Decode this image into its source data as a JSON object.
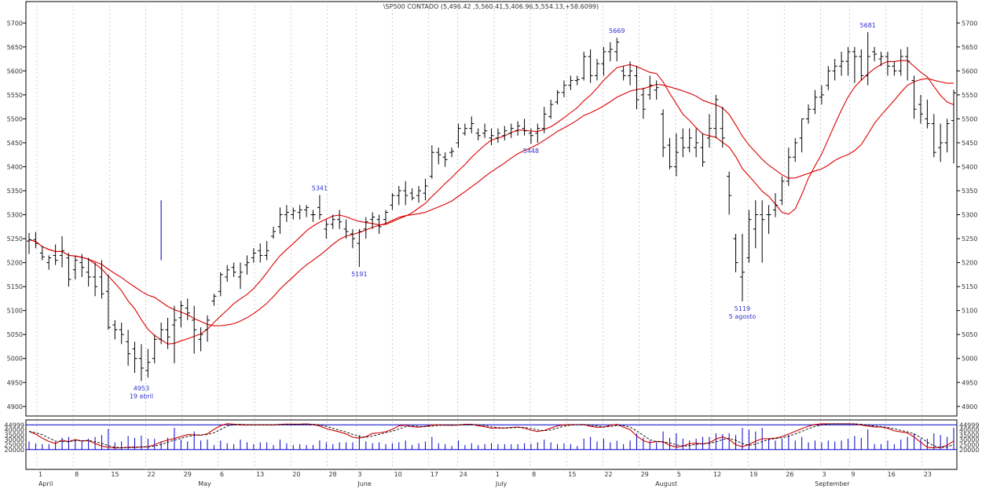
{
  "chart_data": {
    "type": "ohlc",
    "title": "\\SP500 CONTADO (5,496.42 ,5,560.41,5,406.96,5,554.13,+58.6099)",
    "price_axis": {
      "ylim": [
        4880,
        5725
      ],
      "ticks": [
        4900,
        4950,
        5000,
        5050,
        5100,
        5150,
        5200,
        5250,
        5300,
        5350,
        5400,
        5450,
        5500,
        5550,
        5600,
        5650,
        5700
      ],
      "tick_labels": [
        "4900",
        "4950",
        "5000",
        "5050",
        "5100",
        "5150",
        "5200",
        "5250",
        "5300",
        "5350",
        "5400",
        "5450",
        "5500",
        "5550",
        "5600",
        "5650",
        "5700"
      ]
    },
    "x_axis": {
      "day_ticks": [
        {
          "x": 0,
          "label": "1"
        },
        {
          "x": 5,
          "label": "8"
        },
        {
          "x": 10,
          "label": "15"
        },
        {
          "x": 15,
          "label": "22"
        },
        {
          "x": 20,
          "label": "29"
        },
        {
          "x": 25,
          "label": "6"
        },
        {
          "x": 30,
          "label": "13"
        },
        {
          "x": 35,
          "label": "20"
        },
        {
          "x": 40,
          "label": "28"
        },
        {
          "x": 44,
          "label": "3"
        },
        {
          "x": 49,
          "label": "10"
        },
        {
          "x": 54,
          "label": "17"
        },
        {
          "x": 58,
          "label": "24"
        },
        {
          "x": 63,
          "label": "1"
        },
        {
          "x": 68,
          "label": "8"
        },
        {
          "x": 73,
          "label": "15"
        },
        {
          "x": 78,
          "label": "22"
        },
        {
          "x": 83,
          "label": "29"
        },
        {
          "x": 88,
          "label": "5"
        },
        {
          "x": 93,
          "label": "12"
        },
        {
          "x": 98,
          "label": "19"
        },
        {
          "x": 103,
          "label": "26"
        },
        {
          "x": 108,
          "label": "3"
        },
        {
          "x": 112,
          "label": "9"
        },
        {
          "x": 117,
          "label": "16"
        },
        {
          "x": 122,
          "label": "23"
        }
      ],
      "months": [
        {
          "x": 0,
          "label": "April"
        },
        {
          "x": 22,
          "label": "May"
        },
        {
          "x": 44,
          "label": "June"
        },
        {
          "x": 63,
          "label": "July"
        },
        {
          "x": 85,
          "label": "August"
        },
        {
          "x": 107,
          "label": "September"
        }
      ],
      "xlim": [
        -1.5,
        125.5
      ]
    },
    "bars": [
      [
        0,
        5245,
        5262,
        5218,
        5248
      ],
      [
        1,
        5248,
        5264,
        5230,
        5240
      ],
      [
        2,
        5220,
        5235,
        5205,
        5212
      ],
      [
        3,
        5200,
        5215,
        5185,
        5210
      ],
      [
        4,
        5215,
        5238,
        5195,
        5205
      ],
      [
        5,
        5215,
        5255,
        5190,
        5225
      ],
      [
        6,
        5210,
        5220,
        5150,
        5165
      ],
      [
        7,
        5185,
        5215,
        5165,
        5205
      ],
      [
        8,
        5200,
        5218,
        5170,
        5190
      ],
      [
        9,
        5180,
        5210,
        5150,
        5170
      ],
      [
        10,
        5170,
        5200,
        5130,
        5150
      ],
      [
        11,
        5170,
        5205,
        5125,
        5135
      ],
      [
        12,
        5140,
        5175,
        5060,
        5065
      ],
      [
        13,
        5070,
        5080,
        5040,
        5060
      ],
      [
        14,
        5060,
        5075,
        5030,
        5050
      ],
      [
        15,
        5035,
        5060,
        4985,
        5010
      ],
      [
        16,
        5020,
        5035,
        4970,
        5000
      ],
      [
        17,
        5000,
        5030,
        4953,
        4980
      ],
      [
        18,
        4975,
        5020,
        4960,
        4992
      ],
      [
        19,
        5000,
        5050,
        4990,
        5040
      ],
      [
        20,
        5040,
        5075,
        5030,
        5060
      ],
      [
        21,
        5060,
        5085,
        5020,
        5045
      ],
      [
        22,
        5070,
        5110,
        4990,
        5080
      ],
      [
        23,
        5085,
        5120,
        5065,
        5110
      ],
      [
        24,
        5105,
        5125,
        5080,
        5095
      ],
      [
        25,
        5080,
        5110,
        5010,
        5060
      ],
      [
        26,
        5040,
        5065,
        5015,
        5050
      ],
      [
        27,
        5060,
        5090,
        5035,
        5080
      ],
      [
        28,
        5120,
        5135,
        5110,
        5130
      ],
      [
        29,
        5140,
        5180,
        5130,
        5175
      ],
      [
        30,
        5170,
        5195,
        5160,
        5185
      ],
      [
        31,
        5190,
        5200,
        5170,
        5180
      ],
      [
        32,
        5170,
        5200,
        5145,
        5180
      ],
      [
        33,
        5195,
        5215,
        5175,
        5200
      ],
      [
        34,
        5210,
        5230,
        5200,
        5220
      ],
      [
        35,
        5225,
        5240,
        5200,
        5215
      ],
      [
        36,
        5215,
        5245,
        5205,
        5225
      ],
      [
        37,
        5255,
        5275,
        5250,
        5265
      ],
      [
        38,
        5275,
        5315,
        5260,
        5300
      ],
      [
        39,
        5300,
        5320,
        5285,
        5305
      ],
      [
        40,
        5300,
        5315,
        5290,
        5308
      ],
      [
        41,
        5305,
        5320,
        5290,
        5310
      ],
      [
        42,
        5310,
        5320,
        5295,
        5315
      ],
      [
        43,
        5300,
        5310,
        5285,
        5300
      ],
      [
        44,
        5315,
        5341,
        5290,
        5300
      ],
      [
        45,
        5270,
        5290,
        5250,
        5280
      ],
      [
        46,
        5280,
        5300,
        5270,
        5290
      ],
      [
        47,
        5290,
        5310,
        5270,
        5285
      ],
      [
        48,
        5270,
        5290,
        5250,
        5265
      ],
      [
        49,
        5260,
        5270,
        5230,
        5250
      ],
      [
        50,
        5240,
        5270,
        5191,
        5265
      ],
      [
        51,
        5270,
        5295,
        5250,
        5285
      ],
      [
        52,
        5290,
        5305,
        5270,
        5295
      ],
      [
        53,
        5290,
        5300,
        5260,
        5275
      ],
      [
        54,
        5290,
        5310,
        5280,
        5305
      ],
      [
        55,
        5320,
        5345,
        5310,
        5340
      ],
      [
        56,
        5340,
        5360,
        5320,
        5350
      ],
      [
        57,
        5350,
        5370,
        5320,
        5340
      ],
      [
        58,
        5345,
        5355,
        5330,
        5335
      ],
      [
        59,
        5340,
        5360,
        5325,
        5350
      ],
      [
        60,
        5345,
        5375,
        5330,
        5360
      ],
      [
        61,
        5380,
        5445,
        5375,
        5430
      ],
      [
        62,
        5430,
        5440,
        5405,
        5425
      ],
      [
        63,
        5420,
        5430,
        5400,
        5415
      ],
      [
        64,
        5430,
        5440,
        5420,
        5432
      ],
      [
        65,
        5450,
        5490,
        5440,
        5480
      ],
      [
        66,
        5470,
        5490,
        5465,
        5480
      ],
      [
        67,
        5480,
        5505,
        5470,
        5490
      ],
      [
        68,
        5470,
        5480,
        5455,
        5465
      ],
      [
        69,
        5470,
        5490,
        5460,
        5475
      ],
      [
        70,
        5460,
        5480,
        5445,
        5465
      ],
      [
        71,
        5460,
        5480,
        5450,
        5470
      ],
      [
        72,
        5465,
        5485,
        5455,
        5475
      ],
      [
        73,
        5470,
        5490,
        5460,
        5480
      ],
      [
        74,
        5475,
        5495,
        5465,
        5485
      ],
      [
        75,
        5480,
        5500,
        5465,
        5475
      ],
      [
        76,
        5470,
        5480,
        5448,
        5465
      ],
      [
        77,
        5470,
        5490,
        5450,
        5480
      ],
      [
        78,
        5480,
        5525,
        5470,
        5510
      ],
      [
        79,
        5505,
        5540,
        5500,
        5530
      ],
      [
        80,
        5535,
        5560,
        5530,
        5555
      ],
      [
        81,
        5555,
        5580,
        5545,
        5570
      ],
      [
        82,
        5570,
        5590,
        5560,
        5580
      ],
      [
        83,
        5580,
        5590,
        5570,
        5582
      ],
      [
        84,
        5585,
        5640,
        5580,
        5630
      ],
      [
        85,
        5630,
        5645,
        5575,
        5590
      ],
      [
        86,
        5590,
        5625,
        5580,
        5615
      ],
      [
        87,
        5615,
        5650,
        5590,
        5640
      ],
      [
        88,
        5640,
        5660,
        5620,
        5645
      ],
      [
        89,
        5640,
        5669,
        5620,
        5660
      ],
      [
        90,
        5600,
        5610,
        5580,
        5590
      ],
      [
        91,
        5590,
        5620,
        5570,
        5600
      ],
      [
        92,
        5590,
        5610,
        5520,
        5540
      ],
      [
        93,
        5550,
        5565,
        5500,
        5520
      ],
      [
        94,
        5550,
        5590,
        5540,
        5570
      ],
      [
        95,
        5560,
        5580,
        5540,
        5565
      ],
      [
        96,
        5510,
        5520,
        5420,
        5440
      ],
      [
        97,
        5445,
        5460,
        5395,
        5400
      ],
      [
        98,
        5400,
        5470,
        5380,
        5430
      ],
      [
        99,
        5460,
        5480,
        5420,
        5440
      ],
      [
        100,
        5440,
        5480,
        5430,
        5460
      ],
      [
        101,
        5440,
        5480,
        5420,
        5450
      ],
      [
        102,
        5440,
        5470,
        5400,
        5410
      ],
      [
        103,
        5460,
        5510,
        5440,
        5480
      ],
      [
        104,
        5480,
        5550,
        5460,
        5540
      ],
      [
        105,
        5480,
        5525,
        5440,
        5460
      ],
      [
        106,
        5380,
        5390,
        5300,
        5340
      ],
      [
        107,
        5250,
        5260,
        5180,
        5200
      ],
      [
        108,
        5170,
        5260,
        5119,
        5180
      ],
      [
        109,
        5210,
        5310,
        5200,
        5290
      ],
      [
        110,
        5270,
        5330,
        5230,
        5300
      ],
      [
        111,
        5300,
        5330,
        5200,
        5290
      ],
      [
        112,
        5300,
        5320,
        5260,
        5300
      ],
      [
        113,
        5310,
        5345,
        5295,
        5320
      ],
      [
        114,
        5330,
        5380,
        5320,
        5370
      ],
      [
        115,
        5370,
        5440,
        5360,
        5420
      ],
      [
        116,
        5420,
        5460,
        5410,
        5450
      ],
      [
        117,
        5460,
        5500,
        5430,
        5500
      ],
      [
        118,
        5500,
        5530,
        5490,
        5520
      ],
      [
        119,
        5520,
        5560,
        5510,
        5545
      ],
      [
        120,
        5545,
        5570,
        5530,
        5550
      ],
      [
        121,
        5570,
        5610,
        5560,
        5600
      ],
      [
        122,
        5600,
        5625,
        5580,
        5610
      ],
      [
        123,
        5610,
        5640,
        5590,
        5620
      ],
      [
        124,
        5620,
        5650,
        5590,
        5640
      ],
      [
        125,
        5640,
        5650,
        5575,
        5630
      ],
      [
        126,
        5630,
        5645,
        5580,
        5590
      ],
      [
        127,
        5590,
        5681,
        5570,
        5630
      ],
      [
        128,
        5640,
        5650,
        5620,
        5635
      ],
      [
        129,
        5625,
        5640,
        5610,
        5630
      ],
      [
        130,
        5630,
        5640,
        5590,
        5610
      ],
      [
        131,
        5610,
        5620,
        5590,
        5600
      ],
      [
        132,
        5600,
        5645,
        5590,
        5630
      ],
      [
        133,
        5630,
        5650,
        5580,
        5620
      ],
      [
        134,
        5580,
        5590,
        5500,
        5520
      ],
      [
        135,
        5530,
        5550,
        5490,
        5510
      ],
      [
        136,
        5500,
        5540,
        5480,
        5490
      ],
      [
        137,
        5490,
        5510,
        5420,
        5430
      ],
      [
        138,
        5440,
        5490,
        5410,
        5450
      ],
      [
        139,
        5450,
        5500,
        5430,
        5490
      ],
      [
        140,
        5496.42,
        5560.41,
        5406.96,
        5554.13
      ]
    ],
    "annotations": [
      {
        "x": 17,
        "price": 4953,
        "text": "4953",
        "pos": "below"
      },
      {
        "x": 17,
        "price": 4953,
        "text": "19 abril",
        "pos": "below2"
      },
      {
        "x": 44,
        "price": 5341,
        "text": "5341",
        "pos": "above"
      },
      {
        "x": 50,
        "price": 5191,
        "text": "5191",
        "pos": "below"
      },
      {
        "x": 76,
        "price": 5448,
        "text": "5448",
        "pos": "below"
      },
      {
        "x": 89,
        "price": 5669,
        "text": "5669",
        "pos": "above"
      },
      {
        "x": 108,
        "price": 5119,
        "text": "5119",
        "pos": "below"
      },
      {
        "x": 108,
        "price": 5119,
        "text": "5 agosto",
        "pos": "below2"
      },
      {
        "x": 127,
        "price": 5681,
        "text": "5681",
        "pos": "above"
      }
    ],
    "volume_spike": {
      "x": 20,
      "top": 5330,
      "bottom": 5205
    },
    "oscillator": {
      "ylim": [
        0,
        50000
      ],
      "ticks": [
        44999,
        40000,
        35000,
        30000,
        25000,
        20000
      ],
      "tick_labels": [
        "44999",
        "40000",
        "35000",
        "30000",
        "25000",
        "20000"
      ],
      "line_levels": [
        44999,
        20000
      ],
      "colors": {
        "k": "#cc0000",
        "d": "#000000",
        "volume": "#0000cc"
      }
    },
    "colors": {
      "bars": "#000000",
      "ma": "#dd0000",
      "grid": "#bbbbbb",
      "text": "#3333cc",
      "axis": "#000000"
    }
  }
}
